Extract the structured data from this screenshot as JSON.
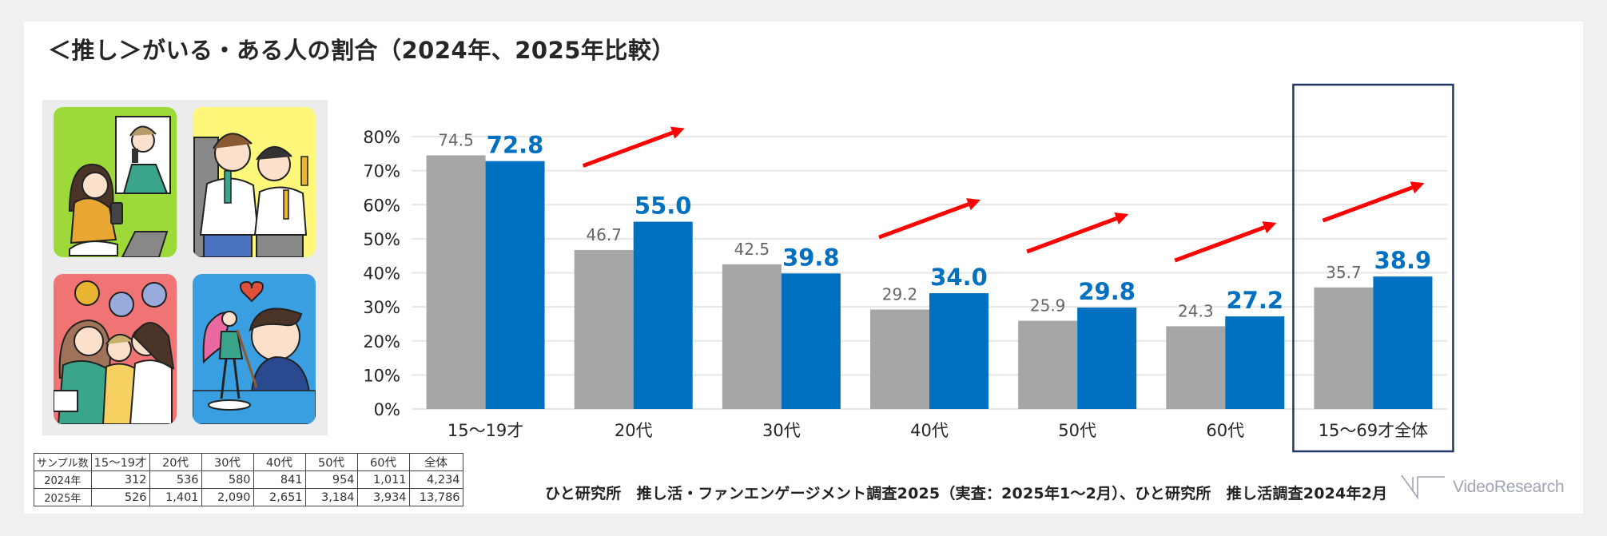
{
  "title": "＜推し＞がいる・ある人の割合（2024年、2025年比較）",
  "colors": {
    "series_2024": "#a6a6a6",
    "series_2025": "#0070c0",
    "arrow": "#ff0000",
    "highlight_box": "#1f3864",
    "gridline": "#e6e6e6",
    "label_2024": "#666666",
    "label_2025": "#0070c0"
  },
  "illustrations": [
    {
      "name": "woman-watching-idol-on-phone",
      "bg": "#9ed93a"
    },
    {
      "name": "two-fans-with-penlights",
      "bg": "#fdf77a"
    },
    {
      "name": "friends-chatting-about-oshi",
      "bg": "#f07474"
    },
    {
      "name": "man-with-figure",
      "bg": "#3a9fe0"
    }
  ],
  "chart_data": {
    "type": "bar",
    "title": "＜推し＞がいる・ある人の割合（2024年、2025年比較）",
    "xlabel": "",
    "ylabel": "",
    "categories": [
      "15～19才",
      "20代",
      "30代",
      "40代",
      "50代",
      "60代",
      "15～69才全体"
    ],
    "series": [
      {
        "name": "2024年",
        "values": [
          74.5,
          46.7,
          42.5,
          29.2,
          25.9,
          24.3,
          35.7
        ]
      },
      {
        "name": "2025年",
        "values": [
          72.8,
          55.0,
          39.8,
          34.0,
          29.8,
          27.2,
          38.9
        ]
      }
    ],
    "value_labels": {
      "2024年": [
        "74.5",
        "46.7",
        "42.5",
        "29.2",
        "25.9",
        "24.3",
        "35.7"
      ],
      "2025年": [
        "72.8",
        "55.0",
        "39.8",
        "34.0",
        "29.8",
        "27.2",
        "38.9"
      ]
    },
    "ylim": [
      0,
      80
    ],
    "yticks": [
      "0%",
      "10%",
      "20%",
      "30%",
      "40%",
      "50%",
      "60%",
      "70%",
      "80%"
    ],
    "grid": true,
    "legend": "none",
    "increase_arrows": [
      "20代",
      "40代",
      "50代",
      "60代",
      "15～69才全体"
    ],
    "highlighted_category": "15～69才全体"
  },
  "sample_table": {
    "header": [
      "サンプル数",
      "15～19才",
      "20代",
      "30代",
      "40代",
      "50代",
      "60代",
      "全体"
    ],
    "rows": [
      {
        "label": "2024年",
        "values": [
          "312",
          "536",
          "580",
          "841",
          "954",
          "1,011",
          "4,234"
        ]
      },
      {
        "label": "2025年",
        "values": [
          "526",
          "1,401",
          "2,090",
          "2,651",
          "3,184",
          "3,934",
          "13,786"
        ]
      }
    ]
  },
  "footnote": "ひと研究所　推し活・ファンエンゲージメント調査2025（実査：2025年1～2月）、ひと研究所　推し活調査2024年2月",
  "logo": {
    "text": "VideoResearch"
  }
}
